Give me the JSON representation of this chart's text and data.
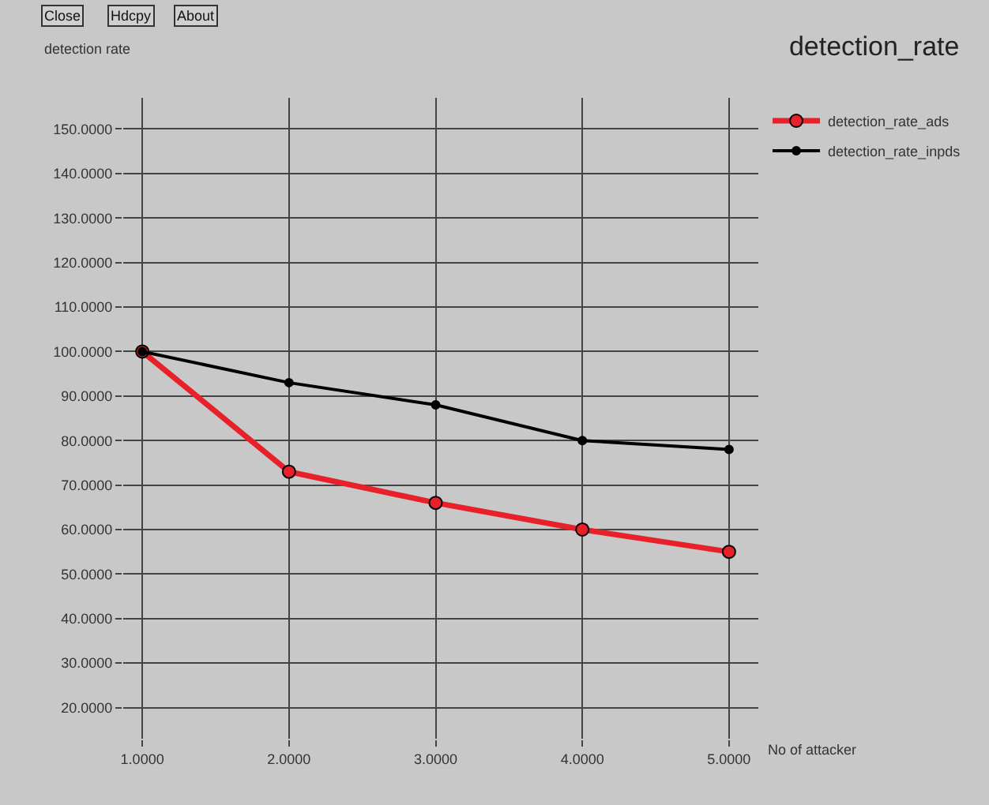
{
  "chart_data": {
    "type": "line",
    "title": "detection_rate",
    "xlabel": "No of attacker",
    "ylabel": "detection rate",
    "annotations": [
      "Close",
      "Hdcpy",
      "About"
    ],
    "x": [
      1,
      2,
      3,
      4,
      5
    ],
    "series": [
      {
        "name": "detection_rate_ads",
        "color": "#e8202a",
        "values": [
          100,
          73,
          66,
          60,
          55
        ]
      },
      {
        "name": "detection_rate_inpds",
        "color": "#000000",
        "values": [
          100,
          93,
          88,
          80,
          78
        ]
      }
    ],
    "xlim": [
      0.87,
      5.2
    ],
    "ylim": [
      13,
      157
    ],
    "xticks": [
      {
        "value": 1,
        "label": "1.0000"
      },
      {
        "value": 2,
        "label": "2.0000"
      },
      {
        "value": 3,
        "label": "3.0000"
      },
      {
        "value": 4,
        "label": "4.0000"
      },
      {
        "value": 5,
        "label": "5.0000"
      }
    ],
    "yticks": [
      {
        "value": 20,
        "label": "20.0000"
      },
      {
        "value": 30,
        "label": "30.0000"
      },
      {
        "value": 40,
        "label": "40.0000"
      },
      {
        "value": 50,
        "label": "50.0000"
      },
      {
        "value": 60,
        "label": "60.0000"
      },
      {
        "value": 70,
        "label": "70.0000"
      },
      {
        "value": 80,
        "label": "80.0000"
      },
      {
        "value": 90,
        "label": "90.0000"
      },
      {
        "value": 100,
        "label": "100.0000"
      },
      {
        "value": 110,
        "label": "110.0000"
      },
      {
        "value": 120,
        "label": "120.0000"
      },
      {
        "value": 130,
        "label": "130.0000"
      },
      {
        "value": 140,
        "label": "140.0000"
      },
      {
        "value": 150,
        "label": "150.0000"
      }
    ],
    "grid": true,
    "legend": "top right",
    "marker": "circle",
    "line_style": "solid"
  }
}
